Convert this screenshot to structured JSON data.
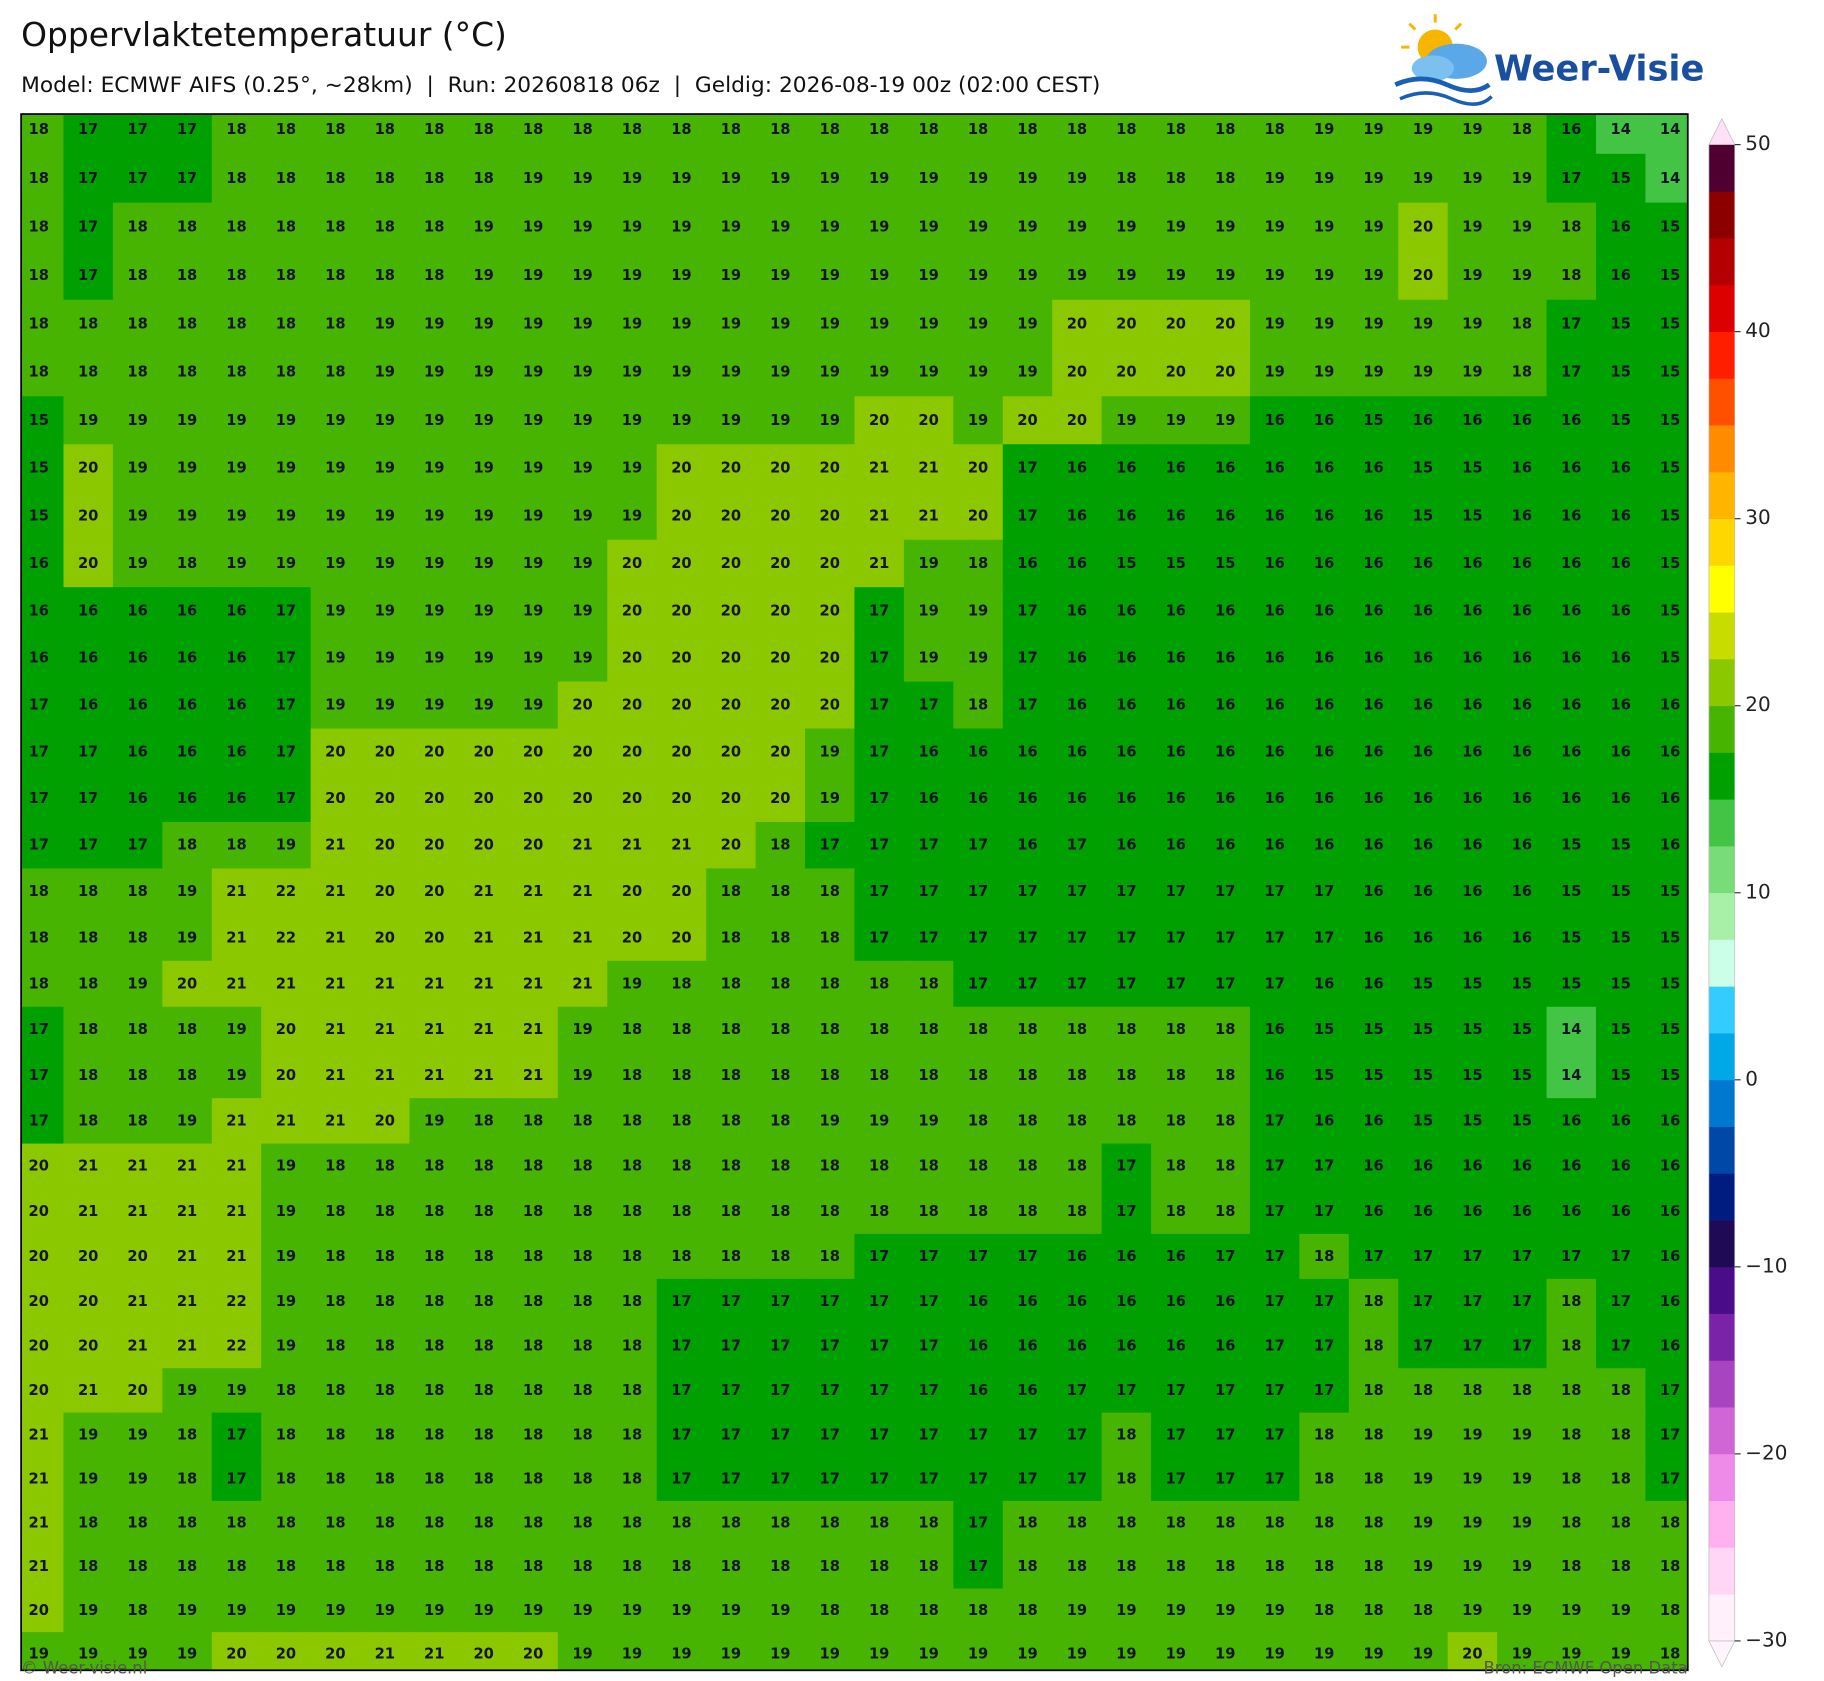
{
  "header": {
    "title": "Oppervlaktetemperatuur (°C)",
    "subtitle": "Model: ECMWF AIFS (0.25°, ~28km)  |  Run: 20260818 06z  |  Geldig: 2026-08-19 00z (02:00 CEST)",
    "logo": "Weer-Visie"
  },
  "map": {
    "grid": [
      [
        18,
        17,
        17,
        17,
        18,
        18,
        18,
        18,
        18,
        18,
        18,
        18,
        18,
        18,
        18,
        18,
        18,
        18,
        18,
        18,
        18,
        18,
        18,
        18,
        18,
        18,
        19,
        19,
        19,
        19,
        18,
        16,
        14,
        14
      ],
      [
        18,
        17,
        17,
        17,
        18,
        18,
        18,
        18,
        18,
        18,
        19,
        19,
        19,
        19,
        19,
        19,
        19,
        19,
        19,
        19,
        19,
        19,
        18,
        18,
        18,
        19,
        19,
        19,
        19,
        19,
        19,
        17,
        15,
        14
      ],
      [
        18,
        17,
        18,
        18,
        18,
        18,
        18,
        18,
        18,
        19,
        19,
        19,
        19,
        19,
        19,
        19,
        19,
        19,
        19,
        19,
        19,
        19,
        19,
        19,
        19,
        19,
        19,
        19,
        20,
        19,
        19,
        18,
        16,
        15
      ],
      [
        18,
        17,
        18,
        18,
        18,
        18,
        18,
        18,
        18,
        19,
        19,
        19,
        19,
        19,
        19,
        19,
        19,
        19,
        19,
        19,
        19,
        19,
        19,
        19,
        19,
        19,
        19,
        19,
        20,
        19,
        19,
        18,
        16,
        15
      ],
      [
        18,
        18,
        18,
        18,
        18,
        18,
        18,
        19,
        19,
        19,
        19,
        19,
        19,
        19,
        19,
        19,
        19,
        19,
        19,
        19,
        19,
        20,
        20,
        20,
        20,
        19,
        19,
        19,
        19,
        19,
        18,
        17,
        15,
        15
      ],
      [
        18,
        18,
        18,
        18,
        18,
        18,
        18,
        19,
        19,
        19,
        19,
        19,
        19,
        19,
        19,
        19,
        19,
        19,
        19,
        19,
        19,
        20,
        20,
        20,
        20,
        19,
        19,
        19,
        19,
        19,
        18,
        17,
        15,
        15
      ],
      [
        15,
        19,
        19,
        19,
        19,
        19,
        19,
        19,
        19,
        19,
        19,
        19,
        19,
        19,
        19,
        19,
        19,
        20,
        20,
        19,
        20,
        20,
        19,
        19,
        19,
        16,
        16,
        15,
        16,
        16,
        16,
        16,
        15,
        15
      ],
      [
        15,
        20,
        19,
        19,
        19,
        19,
        19,
        19,
        19,
        19,
        19,
        19,
        19,
        20,
        20,
        20,
        20,
        21,
        21,
        20,
        17,
        16,
        16,
        16,
        16,
        16,
        16,
        16,
        15,
        15,
        16,
        16,
        16,
        15
      ],
      [
        15,
        20,
        19,
        19,
        19,
        19,
        19,
        19,
        19,
        19,
        19,
        19,
        19,
        20,
        20,
        20,
        20,
        21,
        21,
        20,
        17,
        16,
        16,
        16,
        16,
        16,
        16,
        16,
        15,
        15,
        16,
        16,
        16,
        15
      ],
      [
        16,
        20,
        19,
        18,
        19,
        19,
        19,
        19,
        19,
        19,
        19,
        19,
        20,
        20,
        20,
        20,
        20,
        21,
        19,
        18,
        16,
        16,
        15,
        15,
        15,
        16,
        16,
        16,
        16,
        16,
        16,
        16,
        16,
        15
      ],
      [
        16,
        16,
        16,
        16,
        16,
        17,
        19,
        19,
        19,
        19,
        19,
        19,
        20,
        20,
        20,
        20,
        20,
        17,
        19,
        19,
        17,
        16,
        16,
        16,
        16,
        16,
        16,
        16,
        16,
        16,
        16,
        16,
        16,
        15
      ],
      [
        16,
        16,
        16,
        16,
        16,
        17,
        19,
        19,
        19,
        19,
        19,
        19,
        20,
        20,
        20,
        20,
        20,
        17,
        19,
        19,
        17,
        16,
        16,
        16,
        16,
        16,
        16,
        16,
        16,
        16,
        16,
        16,
        16,
        15
      ],
      [
        17,
        16,
        16,
        16,
        16,
        17,
        19,
        19,
        19,
        19,
        19,
        20,
        20,
        20,
        20,
        20,
        20,
        17,
        17,
        18,
        17,
        16,
        16,
        16,
        16,
        16,
        16,
        16,
        16,
        16,
        16,
        16,
        16,
        16
      ],
      [
        17,
        17,
        16,
        16,
        16,
        17,
        20,
        20,
        20,
        20,
        20,
        20,
        20,
        20,
        20,
        20,
        19,
        17,
        16,
        16,
        16,
        16,
        16,
        16,
        16,
        16,
        16,
        16,
        16,
        16,
        16,
        16,
        16,
        16
      ],
      [
        17,
        17,
        16,
        16,
        16,
        17,
        20,
        20,
        20,
        20,
        20,
        20,
        20,
        20,
        20,
        20,
        19,
        17,
        16,
        16,
        16,
        16,
        16,
        16,
        16,
        16,
        16,
        16,
        16,
        16,
        16,
        16,
        16,
        16
      ],
      [
        17,
        17,
        17,
        18,
        18,
        19,
        21,
        20,
        20,
        20,
        20,
        21,
        21,
        21,
        20,
        18,
        17,
        17,
        17,
        17,
        16,
        17,
        16,
        16,
        16,
        16,
        16,
        16,
        16,
        16,
        16,
        15,
        15,
        16
      ],
      [
        18,
        18,
        18,
        19,
        21,
        22,
        21,
        20,
        20,
        21,
        21,
        21,
        20,
        20,
        18,
        18,
        18,
        17,
        17,
        17,
        17,
        17,
        17,
        17,
        17,
        17,
        17,
        16,
        16,
        16,
        16,
        15,
        15,
        15
      ],
      [
        18,
        18,
        18,
        19,
        21,
        22,
        21,
        20,
        20,
        21,
        21,
        21,
        20,
        20,
        18,
        18,
        18,
        17,
        17,
        17,
        17,
        17,
        17,
        17,
        17,
        17,
        17,
        16,
        16,
        16,
        16,
        15,
        15,
        15
      ],
      [
        18,
        18,
        19,
        20,
        21,
        21,
        21,
        21,
        21,
        21,
        21,
        21,
        19,
        18,
        18,
        18,
        18,
        18,
        18,
        17,
        17,
        17,
        17,
        17,
        17,
        17,
        16,
        16,
        15,
        15,
        15,
        15,
        15,
        15
      ],
      [
        17,
        18,
        18,
        18,
        19,
        20,
        21,
        21,
        21,
        21,
        21,
        19,
        18,
        18,
        18,
        18,
        18,
        18,
        18,
        18,
        18,
        18,
        18,
        18,
        18,
        16,
        15,
        15,
        15,
        15,
        15,
        14,
        15,
        15
      ],
      [
        17,
        18,
        18,
        18,
        19,
        20,
        21,
        21,
        21,
        21,
        21,
        19,
        18,
        18,
        18,
        18,
        18,
        18,
        18,
        18,
        18,
        18,
        18,
        18,
        18,
        16,
        15,
        15,
        15,
        15,
        15,
        14,
        15,
        15
      ],
      [
        17,
        18,
        18,
        19,
        21,
        21,
        21,
        20,
        19,
        18,
        18,
        18,
        18,
        18,
        18,
        18,
        19,
        19,
        19,
        18,
        18,
        18,
        18,
        18,
        18,
        17,
        16,
        16,
        15,
        15,
        15,
        16,
        16,
        16
      ],
      [
        20,
        21,
        21,
        21,
        21,
        19,
        18,
        18,
        18,
        18,
        18,
        18,
        18,
        18,
        18,
        18,
        18,
        18,
        18,
        18,
        18,
        18,
        17,
        18,
        18,
        17,
        17,
        16,
        16,
        16,
        16,
        16,
        16,
        16
      ],
      [
        20,
        21,
        21,
        21,
        21,
        19,
        18,
        18,
        18,
        18,
        18,
        18,
        18,
        18,
        18,
        18,
        18,
        18,
        18,
        18,
        18,
        18,
        17,
        18,
        18,
        17,
        17,
        16,
        16,
        16,
        16,
        16,
        16,
        16
      ],
      [
        20,
        20,
        20,
        21,
        21,
        19,
        18,
        18,
        18,
        18,
        18,
        18,
        18,
        18,
        18,
        18,
        18,
        17,
        17,
        17,
        17,
        16,
        16,
        16,
        17,
        17,
        18,
        17,
        17,
        17,
        17,
        17,
        17,
        16
      ],
      [
        20,
        20,
        21,
        21,
        22,
        19,
        18,
        18,
        18,
        18,
        18,
        18,
        18,
        17,
        17,
        17,
        17,
        17,
        17,
        16,
        16,
        16,
        16,
        16,
        16,
        17,
        17,
        18,
        17,
        17,
        17,
        18,
        17,
        16
      ],
      [
        20,
        20,
        21,
        21,
        22,
        19,
        18,
        18,
        18,
        18,
        18,
        18,
        18,
        17,
        17,
        17,
        17,
        17,
        17,
        16,
        16,
        16,
        16,
        16,
        16,
        17,
        17,
        18,
        17,
        17,
        17,
        18,
        17,
        16
      ],
      [
        20,
        21,
        20,
        19,
        19,
        18,
        18,
        18,
        18,
        18,
        18,
        18,
        18,
        17,
        17,
        17,
        17,
        17,
        17,
        16,
        16,
        17,
        17,
        17,
        17,
        17,
        17,
        18,
        18,
        18,
        18,
        18,
        18,
        17
      ],
      [
        21,
        19,
        19,
        18,
        17,
        18,
        18,
        18,
        18,
        18,
        18,
        18,
        18,
        17,
        17,
        17,
        17,
        17,
        17,
        17,
        17,
        17,
        18,
        17,
        17,
        17,
        18,
        18,
        19,
        19,
        19,
        18,
        18,
        17
      ],
      [
        21,
        19,
        19,
        18,
        17,
        18,
        18,
        18,
        18,
        18,
        18,
        18,
        18,
        17,
        17,
        17,
        17,
        17,
        17,
        17,
        17,
        17,
        18,
        17,
        17,
        17,
        18,
        18,
        19,
        19,
        19,
        18,
        18,
        17
      ],
      [
        21,
        18,
        18,
        18,
        18,
        18,
        18,
        18,
        18,
        18,
        18,
        18,
        18,
        18,
        18,
        18,
        18,
        18,
        18,
        17,
        18,
        18,
        18,
        18,
        18,
        18,
        18,
        18,
        19,
        19,
        19,
        18,
        18,
        18
      ],
      [
        21,
        18,
        18,
        18,
        18,
        18,
        18,
        18,
        18,
        18,
        18,
        18,
        18,
        18,
        18,
        18,
        18,
        18,
        18,
        17,
        18,
        18,
        18,
        18,
        18,
        18,
        18,
        18,
        19,
        19,
        19,
        18,
        18,
        18
      ],
      [
        20,
        19,
        18,
        19,
        19,
        19,
        19,
        19,
        19,
        19,
        19,
        19,
        19,
        19,
        19,
        19,
        18,
        18,
        18,
        18,
        18,
        19,
        19,
        19,
        19,
        19,
        18,
        18,
        18,
        19,
        19,
        19,
        19,
        18
      ],
      [
        19,
        19,
        19,
        19,
        20,
        20,
        20,
        21,
        21,
        20,
        20,
        19,
        19,
        19,
        19,
        19,
        19,
        19,
        19,
        19,
        19,
        19,
        19,
        19,
        19,
        19,
        19,
        19,
        19,
        20,
        19,
        19,
        19,
        18
      ]
    ]
  },
  "colorbar": {
    "lim": [
      -30,
      50
    ],
    "ticks": [
      50,
      40,
      30,
      20,
      10,
      0,
      {
        "value": -10,
        "label": "−10"
      },
      {
        "value": -20,
        "label": "−20"
      },
      {
        "value": -30,
        "label": "−30"
      }
    ],
    "colors": [
      "#fff0fb",
      "#ffd6f5",
      "#ffb0ee",
      "#ee8ae8",
      "#d066d6",
      "#a844c0",
      "#7a22a8",
      "#4a0c88",
      "#1e0a55",
      "#001c80",
      "#0048a8",
      "#0078d0",
      "#00a8e8",
      "#33ccff",
      "#ccffe8",
      "#a8f0a8",
      "#78dc78",
      "#44c444",
      "#00a000",
      "#46b400",
      "#8cc800",
      "#c8dc00",
      "#ffff00",
      "#ffd700",
      "#ffb400",
      "#ff8c00",
      "#ff5000",
      "#ff1e00",
      "#dc0000",
      "#b40000",
      "#8c0000",
      "#500030"
    ]
  },
  "footer": {
    "left": "© Weer-visie.nl",
    "right": "Bron: ECMWF Open Data"
  }
}
